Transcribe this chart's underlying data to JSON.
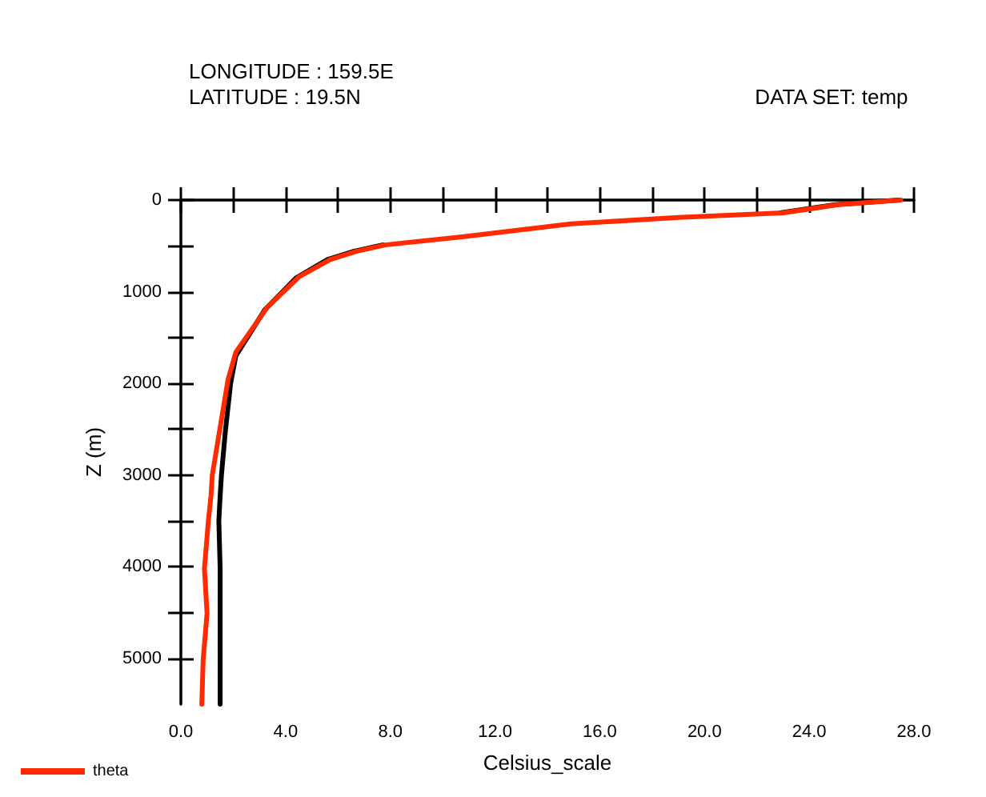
{
  "chart_data": {
    "type": "line",
    "xlabel": "Celsius_scale",
    "ylabel": "Z (m)",
    "annotations": [
      "LONGITUDE : 159.5E",
      "LATITUDE : 19.5N",
      "DATA SET: temp"
    ],
    "series": [
      {
        "name": "theta",
        "color": "#ff2a00",
        "x": [
          27.5,
          25.1,
          23.0,
          19.0,
          14.9,
          10.8,
          7.8,
          6.7,
          5.7,
          4.5,
          3.3,
          2.1,
          1.8,
          1.5,
          1.2,
          1.15,
          1.05,
          0.9,
          1.0,
          0.85,
          0.8
        ],
        "values": [
          0,
          50,
          140,
          190,
          260,
          400,
          490,
          560,
          650,
          840,
          1170,
          1660,
          1960,
          2480,
          3000,
          3230,
          3500,
          4020,
          4510,
          5020,
          5500
        ]
      },
      {
        "color": "#000000",
        "x": [
          27.4,
          25.0,
          22.9,
          18.9,
          14.8,
          10.7,
          7.7,
          6.6,
          5.6,
          4.4,
          3.2,
          2.1,
          1.9,
          1.7,
          1.55,
          1.5,
          1.45,
          1.5,
          1.5,
          1.5,
          1.5
        ],
        "values": [
          0,
          50,
          140,
          null,
          null,
          null,
          490,
          560,
          650,
          850,
          1200,
          1700,
          2000,
          2520,
          3000,
          3230,
          3500,
          4020,
          4510,
          5020,
          5500
        ]
      }
    ],
    "xlim": [
      0,
      28
    ],
    "xticks": [
      {
        "value": 0,
        "label": "0.0"
      },
      {
        "value": 2,
        "label": null
      },
      {
        "value": 4,
        "label": "4.0"
      },
      {
        "value": 6,
        "label": null
      },
      {
        "value": 8,
        "label": "8.0"
      },
      {
        "value": 10,
        "label": null
      },
      {
        "value": 12,
        "label": "12.0"
      },
      {
        "value": 14,
        "label": null
      },
      {
        "value": 16,
        "label": "16.0"
      },
      {
        "value": 18,
        "label": null
      },
      {
        "value": 20,
        "label": "20.0"
      },
      {
        "value": 22,
        "label": null
      },
      {
        "value": 24,
        "label": "24.0"
      },
      {
        "value": 26,
        "label": null
      },
      {
        "value": 28,
        "label": "28.0"
      }
    ],
    "ylim": [
      5500,
      0
    ],
    "yticks": [
      0,
      {
        "value": 500,
        "label": null
      },
      1000,
      {
        "value": 1500,
        "label": null
      },
      2000,
      {
        "value": 2500,
        "label": null
      },
      3000,
      {
        "value": 3500,
        "label": null
      },
      4000,
      {
        "value": 4500,
        "label": null
      },
      5000
    ],
    "grid": false,
    "legend": "bottom left",
    "marker": "none",
    "line_style": "solid"
  }
}
